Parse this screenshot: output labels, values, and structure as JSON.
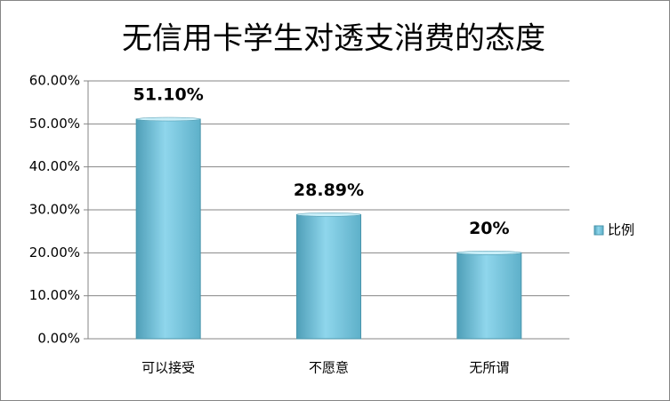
{
  "chart_data": {
    "type": "bar",
    "title": "无信用卡学生对透支消费的态度",
    "categories": [
      "可以接受",
      "不愿意",
      "无所谓"
    ],
    "series": [
      {
        "name": "比例",
        "color": "#6fc3da",
        "values": [
          51.1,
          28.89,
          20
        ],
        "value_labels": [
          "51.10%",
          "28.89%",
          "20%"
        ]
      }
    ],
    "ylim": [
      0,
      60
    ],
    "yticks": [
      {
        "value": 0,
        "label": "0.00%"
      },
      {
        "value": 10,
        "label": "10.00%"
      },
      {
        "value": 20,
        "label": "20.00%"
      },
      {
        "value": 30,
        "label": "30.00%"
      },
      {
        "value": 40,
        "label": "40.00%"
      },
      {
        "value": 50,
        "label": "50.00%"
      },
      {
        "value": 60,
        "label": "60.00%"
      }
    ],
    "grid": true,
    "legend": "right"
  }
}
